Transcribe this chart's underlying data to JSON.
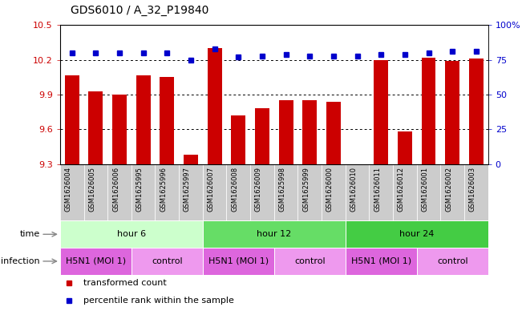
{
  "title": "GDS6010 / A_32_P19840",
  "samples": [
    "GSM1626004",
    "GSM1626005",
    "GSM1626006",
    "GSM1625995",
    "GSM1625996",
    "GSM1625997",
    "GSM1626007",
    "GSM1626008",
    "GSM1626009",
    "GSM1625998",
    "GSM1625999",
    "GSM1626000",
    "GSM1626010",
    "GSM1626011",
    "GSM1626012",
    "GSM1626001",
    "GSM1626002",
    "GSM1626003"
  ],
  "bar_values": [
    10.07,
    9.93,
    9.9,
    10.07,
    10.05,
    9.38,
    10.3,
    9.72,
    9.78,
    9.85,
    9.85,
    9.84,
    9.3,
    10.2,
    9.58,
    10.22,
    10.19,
    10.21
  ],
  "dot_values": [
    80,
    80,
    80,
    80,
    80,
    75,
    83,
    77,
    78,
    79,
    78,
    78,
    78,
    79,
    79,
    80,
    81,
    81
  ],
  "ylim": [
    9.3,
    10.5
  ],
  "y_ticks": [
    9.3,
    9.6,
    9.9,
    10.2,
    10.5
  ],
  "right_ylim": [
    0,
    100
  ],
  "right_yticks": [
    0,
    25,
    50,
    75,
    100
  ],
  "right_yticklabels": [
    "0",
    "25",
    "50",
    "75",
    "100%"
  ],
  "bar_color": "#cc0000",
  "dot_color": "#0000cc",
  "bar_width": 0.6,
  "grid_lines": [
    10.2,
    9.9,
    9.6
  ],
  "time_groups": [
    {
      "label": "hour 6",
      "start": 0,
      "end": 6,
      "color": "#ccffcc"
    },
    {
      "label": "hour 12",
      "start": 6,
      "end": 12,
      "color": "#66dd66"
    },
    {
      "label": "hour 24",
      "start": 12,
      "end": 18,
      "color": "#44cc44"
    }
  ],
  "infection_groups": [
    {
      "label": "H5N1 (MOI 1)",
      "start": 0,
      "end": 3,
      "color": "#dd66dd"
    },
    {
      "label": "control",
      "start": 3,
      "end": 6,
      "color": "#ee99ee"
    },
    {
      "label": "H5N1 (MOI 1)",
      "start": 6,
      "end": 9,
      "color": "#dd66dd"
    },
    {
      "label": "control",
      "start": 9,
      "end": 12,
      "color": "#ee99ee"
    },
    {
      "label": "H5N1 (MOI 1)",
      "start": 12,
      "end": 15,
      "color": "#dd66dd"
    },
    {
      "label": "control",
      "start": 15,
      "end": 18,
      "color": "#ee99ee"
    }
  ],
  "sample_bg_color": "#cccccc",
  "sample_edge_color": "#ffffff",
  "left_label_color": "#888888",
  "arrow_color": "#888888",
  "title_fontsize": 10,
  "tick_fontsize": 8,
  "label_fontsize": 8,
  "sample_fontsize": 6,
  "legend_fontsize": 8
}
